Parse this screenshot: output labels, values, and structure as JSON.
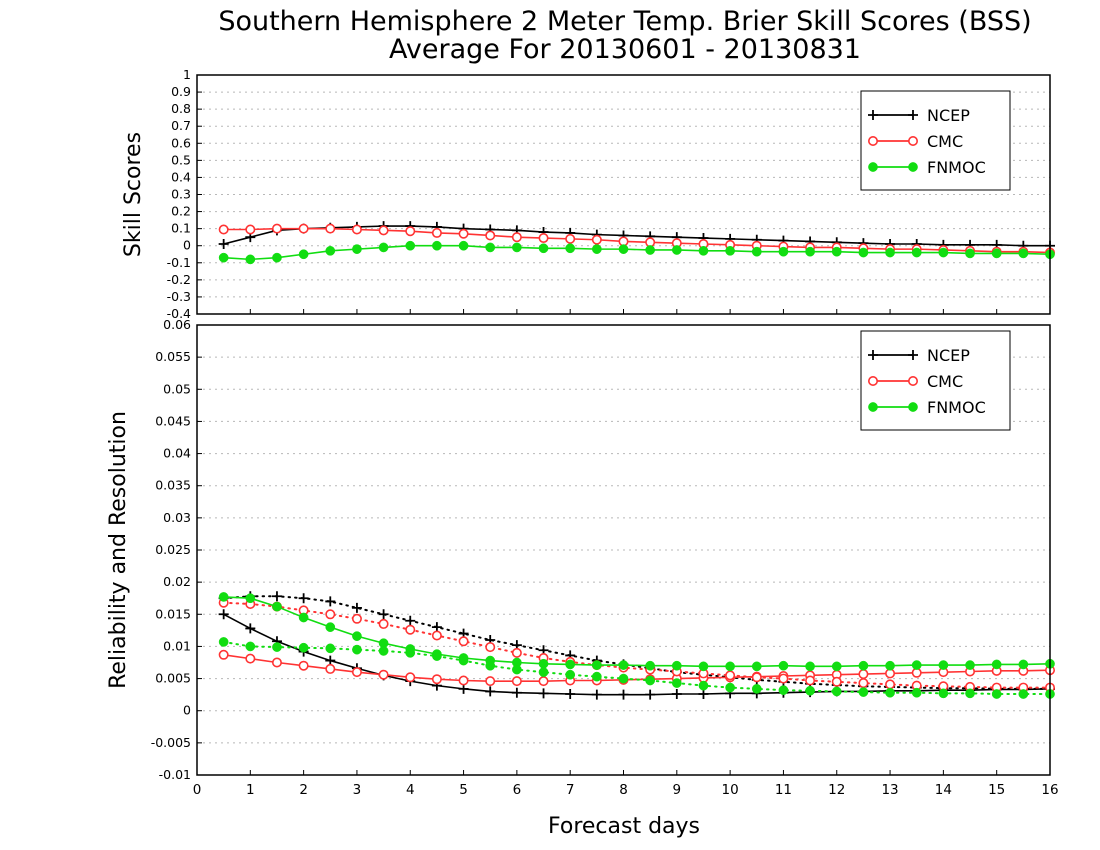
{
  "title_line1": "Southern Hemisphere 2 Meter Temp. Brier Skill Scores (BSS)",
  "title_line2": "Average For 20130601 - 20130831",
  "xlabel": "Forecast days",
  "colors": {
    "NCEP": "#000000",
    "CMC": "#ff3333",
    "FNMOC": "#11dd11"
  },
  "chart_data": [
    {
      "type": "line",
      "ylabel": "Skill Scores",
      "xlim": [
        0,
        16
      ],
      "ylim": [
        -0.4,
        1
      ],
      "x_ticks": [
        "0",
        "1",
        "2",
        "3",
        "4",
        "5",
        "6",
        "7",
        "8",
        "9",
        "10",
        "11",
        "12",
        "13",
        "14",
        "15",
        "16"
      ],
      "y_ticks": [
        "-0.4",
        "-0.3",
        "-0.2",
        "-0.1",
        "0",
        "0.1",
        "0.2",
        "0.3",
        "0.4",
        "0.5",
        "0.6",
        "0.7",
        "0.8",
        "0.9",
        "1"
      ],
      "legend_position": "top-right",
      "legend": [
        "NCEP",
        "CMC",
        "FNMOC"
      ],
      "x": [
        0.5,
        1,
        1.5,
        2,
        2.5,
        3,
        3.5,
        4,
        4.5,
        5,
        5.5,
        6,
        6.5,
        7,
        7.5,
        8,
        8.5,
        9,
        9.5,
        10,
        10.5,
        11,
        11.5,
        12,
        12.5,
        13,
        13.5,
        14,
        14.5,
        15,
        15.5,
        16
      ],
      "series": [
        {
          "name": "NCEP",
          "marker": "plus",
          "line": "solid",
          "values": [
            0.01,
            0.05,
            0.09,
            0.1,
            0.105,
            0.11,
            0.115,
            0.115,
            0.11,
            0.1,
            0.095,
            0.09,
            0.08,
            0.075,
            0.065,
            0.06,
            0.055,
            0.05,
            0.045,
            0.04,
            0.035,
            0.03,
            0.025,
            0.02,
            0.015,
            0.01,
            0.01,
            0.005,
            0.005,
            0.005,
            0.0,
            0.0
          ]
        },
        {
          "name": "CMC",
          "marker": "open-circle",
          "line": "solid",
          "values": [
            0.095,
            0.095,
            0.1,
            0.1,
            0.1,
            0.095,
            0.09,
            0.085,
            0.075,
            0.07,
            0.06,
            0.05,
            0.045,
            0.04,
            0.035,
            0.025,
            0.02,
            0.015,
            0.01,
            0.005,
            0.0,
            -0.005,
            -0.01,
            -0.01,
            -0.015,
            -0.02,
            -0.02,
            -0.025,
            -0.03,
            -0.035,
            -0.035,
            -0.04
          ]
        },
        {
          "name": "FNMOC",
          "marker": "filled-circle",
          "line": "solid",
          "values": [
            -0.07,
            -0.08,
            -0.07,
            -0.05,
            -0.03,
            -0.02,
            -0.01,
            0.0,
            0.0,
            0.0,
            -0.01,
            -0.01,
            -0.015,
            -0.015,
            -0.02,
            -0.02,
            -0.025,
            -0.025,
            -0.03,
            -0.03,
            -0.035,
            -0.035,
            -0.035,
            -0.035,
            -0.04,
            -0.04,
            -0.04,
            -0.04,
            -0.045,
            -0.045,
            -0.045,
            -0.05
          ]
        }
      ]
    },
    {
      "type": "line",
      "ylabel": "Reliability and Resolution",
      "xlim": [
        0,
        16
      ],
      "ylim": [
        -0.01,
        0.06
      ],
      "x_ticks": [
        "0",
        "1",
        "2",
        "3",
        "4",
        "5",
        "6",
        "7",
        "8",
        "9",
        "10",
        "11",
        "12",
        "13",
        "14",
        "15",
        "16"
      ],
      "y_ticks": [
        "-0.01",
        "-0.005",
        "0",
        "0.005",
        "0.01",
        "0.015",
        "0.02",
        "0.025",
        "0.03",
        "0.035",
        "0.04",
        "0.045",
        "0.05",
        "0.055",
        "0.06"
      ],
      "legend_position": "top-right",
      "legend": [
        "NCEP",
        "CMC",
        "FNMOC"
      ],
      "x": [
        0.5,
        1,
        1.5,
        2,
        2.5,
        3,
        3.5,
        4,
        4.5,
        5,
        5.5,
        6,
        6.5,
        7,
        7.5,
        8,
        8.5,
        9,
        9.5,
        10,
        10.5,
        11,
        11.5,
        12,
        12.5,
        13,
        13.5,
        14,
        14.5,
        15,
        15.5,
        16
      ],
      "series": [
        {
          "name": "NCEP",
          "marker": "plus",
          "line": "solid",
          "values": [
            0.015,
            0.0128,
            0.0108,
            0.0092,
            0.0078,
            0.0066,
            0.0055,
            0.0046,
            0.0039,
            0.0034,
            0.003,
            0.0028,
            0.0027,
            0.0026,
            0.0025,
            0.0025,
            0.0025,
            0.0026,
            0.0026,
            0.0027,
            0.0027,
            0.0028,
            0.0029,
            0.003,
            0.003,
            0.0031,
            0.0031,
            0.0032,
            0.0032,
            0.0033,
            0.0033,
            0.0034
          ]
        },
        {
          "name": "NCEP",
          "marker": "plus",
          "line": "dotted",
          "values": [
            0.0175,
            0.0178,
            0.0178,
            0.0175,
            0.017,
            0.016,
            0.015,
            0.014,
            0.013,
            0.012,
            0.011,
            0.0102,
            0.0094,
            0.0086,
            0.0078,
            0.0072,
            0.0066,
            0.006,
            0.0056,
            0.0052,
            0.0048,
            0.0045,
            0.0042,
            0.004,
            0.0038,
            0.0037,
            0.0036,
            0.0035,
            0.0035,
            0.0034,
            0.0034,
            0.0034
          ]
        },
        {
          "name": "CMC",
          "marker": "open-circle",
          "line": "solid",
          "values": [
            0.0087,
            0.0081,
            0.0075,
            0.007,
            0.0065,
            0.006,
            0.0056,
            0.0052,
            0.0049,
            0.0047,
            0.0046,
            0.0046,
            0.0046,
            0.0047,
            0.0047,
            0.0048,
            0.0049,
            0.005,
            0.0051,
            0.0052,
            0.0053,
            0.0054,
            0.0055,
            0.0056,
            0.0057,
            0.0058,
            0.0059,
            0.006,
            0.0061,
            0.0062,
            0.0062,
            0.0063
          ]
        },
        {
          "name": "CMC",
          "marker": "open-circle",
          "line": "dotted",
          "values": [
            0.0168,
            0.0166,
            0.0162,
            0.0156,
            0.015,
            0.0143,
            0.0135,
            0.0126,
            0.0117,
            0.0108,
            0.0099,
            0.009,
            0.0082,
            0.0076,
            0.0071,
            0.0067,
            0.0064,
            0.0061,
            0.0058,
            0.0055,
            0.0052,
            0.005,
            0.0047,
            0.0045,
            0.0043,
            0.0041,
            0.0039,
            0.0038,
            0.0037,
            0.0036,
            0.0036,
            0.0036
          ]
        },
        {
          "name": "FNMOC",
          "marker": "filled-circle",
          "line": "solid",
          "values": [
            0.0177,
            0.0175,
            0.0162,
            0.0145,
            0.013,
            0.0116,
            0.0105,
            0.0096,
            0.0088,
            0.0082,
            0.0078,
            0.0075,
            0.0073,
            0.0072,
            0.0071,
            0.0071,
            0.007,
            0.007,
            0.0069,
            0.0069,
            0.0069,
            0.007,
            0.0069,
            0.0069,
            0.007,
            0.007,
            0.0071,
            0.0071,
            0.0071,
            0.0072,
            0.0072,
            0.0073
          ]
        },
        {
          "name": "FNMOC",
          "marker": "filled-circle",
          "line": "dotted",
          "values": [
            0.0107,
            0.01,
            0.0099,
            0.0098,
            0.0097,
            0.0095,
            0.0093,
            0.009,
            0.0085,
            0.0078,
            0.007,
            0.0064,
            0.006,
            0.0056,
            0.0053,
            0.005,
            0.0047,
            0.0043,
            0.0039,
            0.0036,
            0.0034,
            0.0032,
            0.0031,
            0.003,
            0.0029,
            0.0028,
            0.0028,
            0.0027,
            0.0027,
            0.0026,
            0.0026,
            0.0026
          ]
        }
      ]
    }
  ]
}
